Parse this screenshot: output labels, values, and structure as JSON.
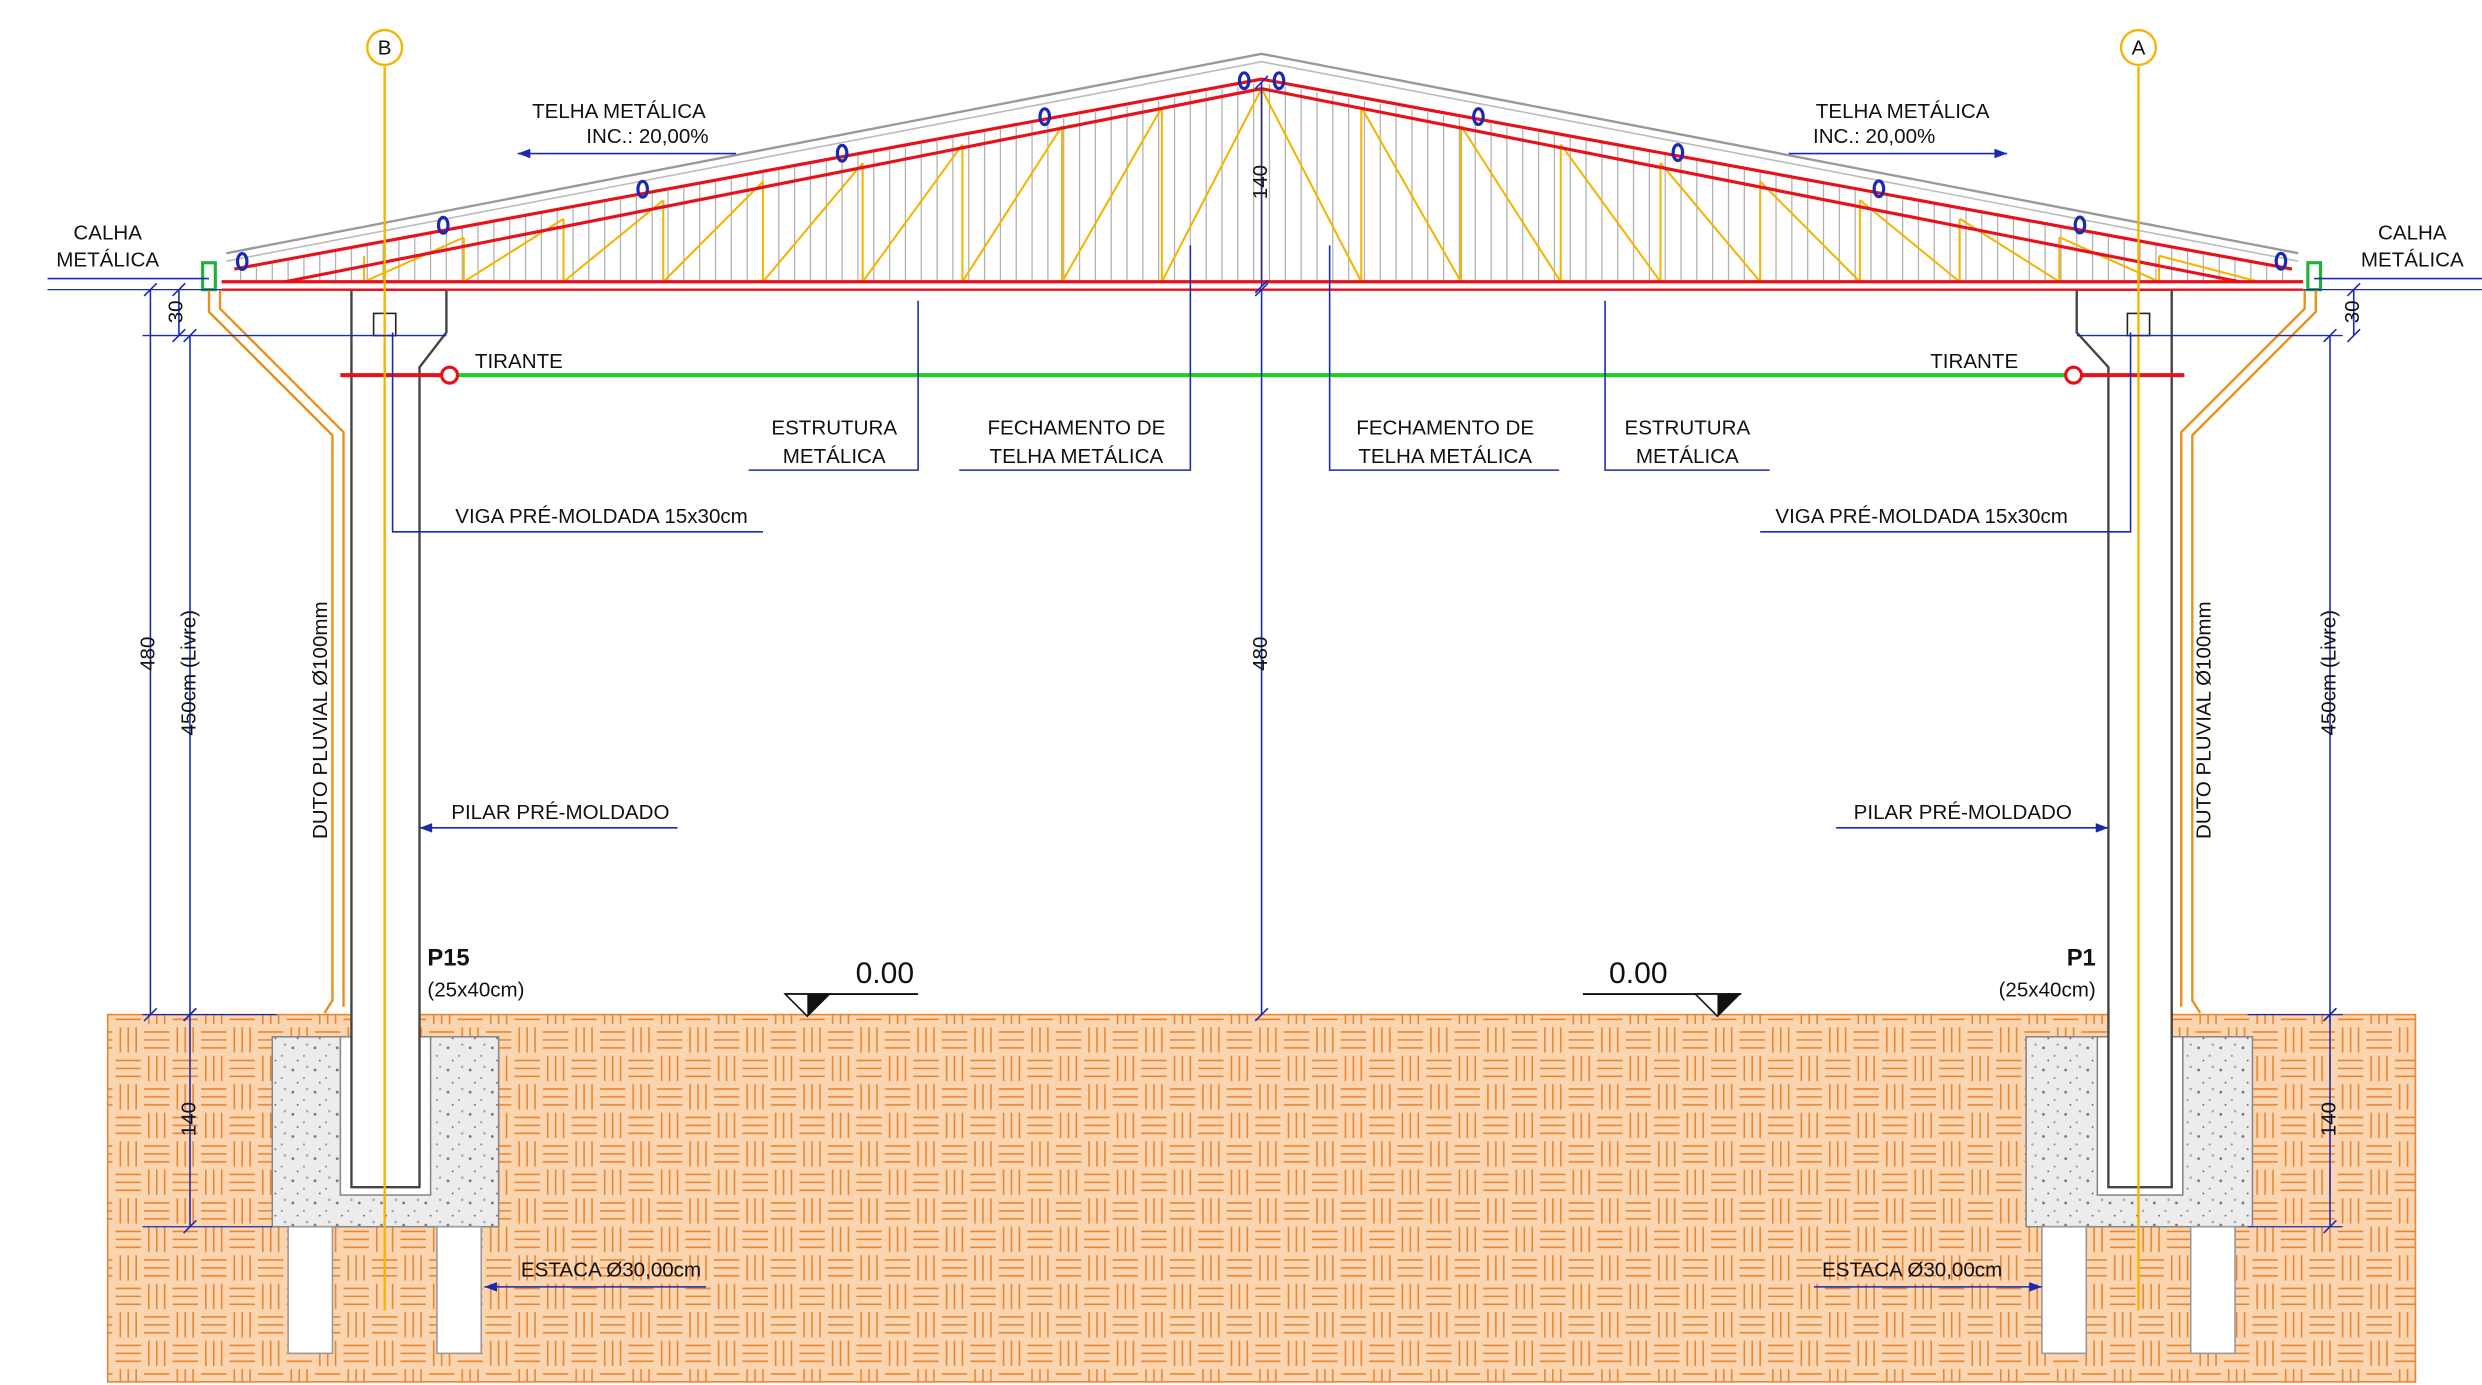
{
  "axes": {
    "left": "B",
    "right": "A"
  },
  "roof_left": {
    "title": "TELHA METÁLICA",
    "slope": "INC.: 20,00%"
  },
  "roof_right": {
    "title": "TELHA METÁLICA",
    "slope": "INC.: 20,00%"
  },
  "gutter_left": [
    "CALHA",
    "METÁLICA"
  ],
  "gutter_right": [
    "CALHA",
    "METÁLICA"
  ],
  "dimensions": {
    "truss_height": "140",
    "left_top": "30",
    "right_top": "30",
    "left_total": "480",
    "center_total": "480",
    "left_free": "450cm (Livre)",
    "right_free": "450cm (Livre)",
    "left_foundation": "140",
    "right_foundation": "140"
  },
  "tie_rod": {
    "left": "TIRANTE",
    "right": "TIRANTE"
  },
  "callouts": {
    "structure_left": [
      "ESTRUTURA",
      "METÁLICA"
    ],
    "closing_left": [
      "FECHAMENTO DE",
      "TELHA METÁLICA"
    ],
    "closing_right": [
      "FECHAMENTO DE",
      "TELHA METÁLICA"
    ],
    "structure_right": [
      "ESTRUTURA",
      "METÁLICA"
    ],
    "beam_left": "VIGA PRÉ-MOLDADA 15x30cm",
    "beam_right": "VIGA PRÉ-MOLDADA 15x30cm",
    "downpipe_left": "DUTO PLUVIAL Ø100mm",
    "downpipe_right": "DUTO PLUVIAL Ø100mm",
    "pillar_left": "PILAR PRÉ-MOLDADO",
    "pillar_right": "PILAR PRÉ-MOLDADO",
    "pile_left": "ESTACA Ø30,00cm",
    "pile_right": "ESTACA Ø30,00cm"
  },
  "columns": [
    {
      "name": "P15",
      "size": "(25x40cm)"
    },
    {
      "name": "P1",
      "size": "(25x40cm)"
    }
  ],
  "levels": [
    "0.00",
    "0.00"
  ]
}
